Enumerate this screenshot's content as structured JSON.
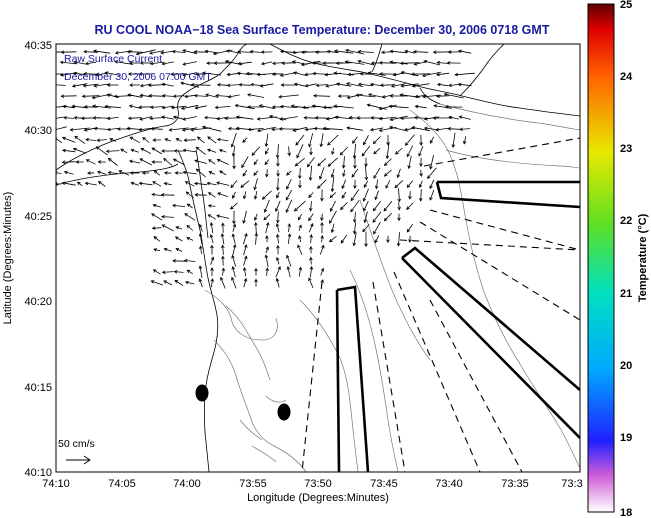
{
  "title": "RU COOL  NOAA−18  Sea Surface Temperature:  December 30, 2006 0718 GMT",
  "legend": {
    "line1": "Raw Surface Current",
    "line2": "December 30, 2006 07:00 GMT"
  },
  "scale_label": "50 cm/s",
  "axes": {
    "xlabel": "Longitude (Degrees:Minutes)",
    "ylabel": "Latitude (Degrees:Minutes)",
    "xticks": [
      "74:10",
      "74:05",
      "74:00",
      "73:55",
      "73:50",
      "73:45",
      "73:40",
      "73:35",
      "73:3"
    ],
    "yticks": [
      "40:35",
      "40:30",
      "40:25",
      "40:20",
      "40:15",
      "40:10"
    ]
  },
  "colorbar": {
    "label": "Temperature (°C)",
    "ticks": [
      "25",
      "24",
      "23",
      "22",
      "21",
      "20",
      "19",
      "18"
    ],
    "range": [
      18,
      25
    ]
  },
  "colors": {
    "title": "#1a1aa0",
    "legend_text": "#1a1aa0",
    "arrows": "#000000",
    "contours": "#777777"
  }
}
